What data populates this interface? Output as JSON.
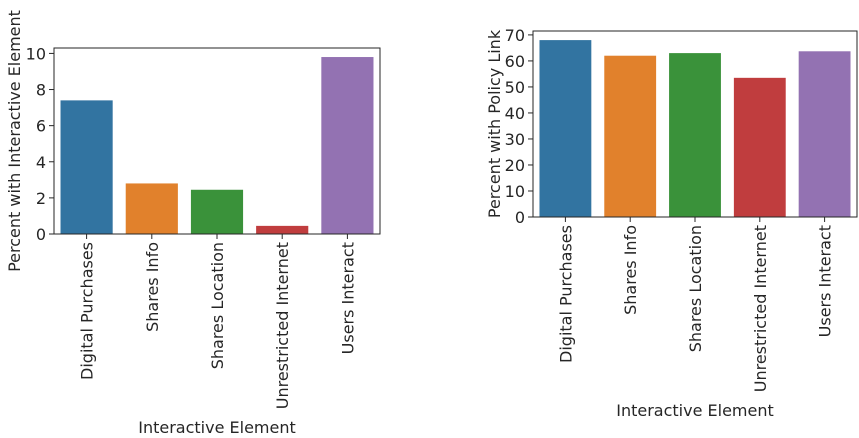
{
  "chart_data": [
    {
      "type": "bar",
      "categories": [
        "Digital Purchases",
        "Shares Info",
        "Shares Location",
        "Unrestricted Internet",
        "Users Interact"
      ],
      "values": [
        7.4,
        2.8,
        2.45,
        0.45,
        9.8
      ],
      "colors": [
        "#3274a1",
        "#e1812c",
        "#3a923a",
        "#c03d3e",
        "#9372b2"
      ],
      "xlabel": "Interactive Element",
      "ylabel": "Percent with Interactive Element",
      "ylim": [
        0,
        10.3
      ],
      "yticks": [
        0,
        2,
        4,
        6,
        8,
        10
      ],
      "grid": false
    },
    {
      "type": "bar",
      "categories": [
        "Digital Purchases",
        "Shares Info",
        "Shares Location",
        "Unrestricted Internet",
        "Users Interact"
      ],
      "values": [
        68,
        62,
        63,
        53.5,
        63.7
      ],
      "colors": [
        "#3274a1",
        "#e1812c",
        "#3a923a",
        "#c03d3e",
        "#9372b2"
      ],
      "xlabel": "Interactive Element",
      "ylabel": "Percent with Policy Link",
      "ylim": [
        0,
        71.5
      ],
      "yticks": [
        0,
        10,
        20,
        30,
        40,
        50,
        60,
        70
      ],
      "grid": false
    }
  ]
}
